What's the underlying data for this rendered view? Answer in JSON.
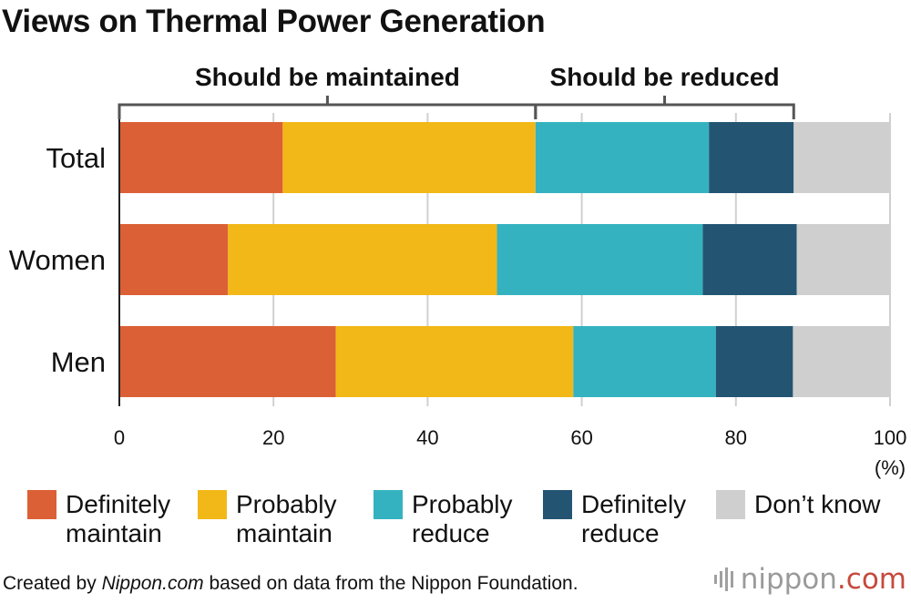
{
  "chart_data": {
    "type": "bar",
    "orientation": "horizontal",
    "stacked": true,
    "title": "Views on Thermal Power Generation",
    "categories": [
      "Total",
      "Women",
      "Men"
    ],
    "series": [
      {
        "name": "Definitely\nmaintain",
        "color": "#dc6035",
        "values": [
          21.2,
          14.1,
          28.1
        ]
      },
      {
        "name": "Probably\nmaintain",
        "color": "#f2b817",
        "values": [
          32.8,
          34.9,
          30.8
        ]
      },
      {
        "name": "Probably\nreduce",
        "color": "#35b2c0",
        "values": [
          22.5,
          26.7,
          18.5
        ]
      },
      {
        "name": "Definitely\nreduce",
        "color": "#235573",
        "values": [
          11.0,
          12.2,
          10.0
        ]
      },
      {
        "name": "Don’t know",
        "color": "#cfcfcf",
        "values": [
          12.5,
          12.1,
          12.6
        ]
      }
    ],
    "xlim": [
      0,
      100
    ],
    "xticks": [
      0,
      20,
      40,
      60,
      80,
      100
    ],
    "xunit": "(%)",
    "grid": true,
    "legend_position": "bottom",
    "groups": [
      {
        "label": "Should be maintained",
        "from": 0,
        "to": 54.0
      },
      {
        "label": "Should be reduced",
        "from": 54.0,
        "to": 87.5
      }
    ]
  },
  "footer": {
    "pre": "Created by ",
    "source": "Nippon.com",
    "post": " based on data from the Nippon Foundation."
  },
  "logo": {
    "name": "nippon",
    "dot": ".",
    "tld": "com"
  }
}
